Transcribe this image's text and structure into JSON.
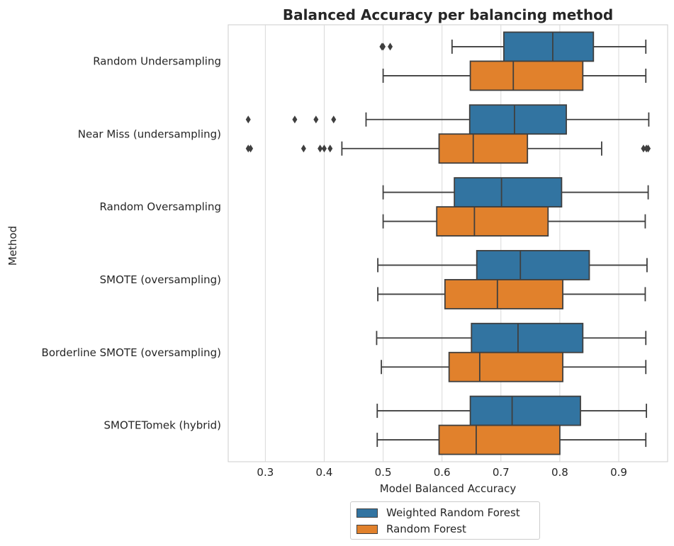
{
  "chart_data": {
    "type": "boxplot",
    "orientation": "horizontal",
    "title": "Balanced Accuracy per balancing method",
    "xlabel": "Model Balanced Accuracy",
    "ylabel": "Method",
    "xlim": [
      0.237,
      0.983
    ],
    "xticks": [
      "0.3",
      "0.4",
      "0.5",
      "0.6",
      "0.7",
      "0.8",
      "0.9"
    ],
    "grid": "vertical",
    "legend_position": "bottom-center",
    "categories": [
      "Random Undersampling",
      "Near Miss (undersampling)",
      "Random Oversampling",
      "SMOTE (oversampling)",
      "Borderline SMOTE (oversampling)",
      "SMOTETomek (hybrid)"
    ],
    "series": [
      {
        "name": "Weighted Random Forest",
        "color": "#3274a1",
        "boxes": [
          {
            "whisker_low": 0.617,
            "q1": 0.705,
            "median": 0.788,
            "q3": 0.857,
            "whisker_high": 0.946,
            "outliers": [
              0.498,
              0.5,
              0.512
            ]
          },
          {
            "whisker_low": 0.471,
            "q1": 0.647,
            "median": 0.723,
            "q3": 0.811,
            "whisker_high": 0.951,
            "outliers": [
              0.271,
              0.35,
              0.386,
              0.416
            ]
          },
          {
            "whisker_low": 0.5,
            "q1": 0.621,
            "median": 0.701,
            "q3": 0.803,
            "whisker_high": 0.95,
            "outliers": []
          },
          {
            "whisker_low": 0.491,
            "q1": 0.659,
            "median": 0.733,
            "q3": 0.85,
            "whisker_high": 0.948,
            "outliers": []
          },
          {
            "whisker_low": 0.489,
            "q1": 0.65,
            "median": 0.729,
            "q3": 0.839,
            "whisker_high": 0.946,
            "outliers": []
          },
          {
            "whisker_low": 0.49,
            "q1": 0.648,
            "median": 0.719,
            "q3": 0.835,
            "whisker_high": 0.947,
            "outliers": []
          }
        ]
      },
      {
        "name": "Random Forest",
        "color": "#e1812c",
        "boxes": [
          {
            "whisker_low": 0.5,
            "q1": 0.648,
            "median": 0.721,
            "q3": 0.839,
            "whisker_high": 0.946,
            "outliers": []
          },
          {
            "whisker_low": 0.43,
            "q1": 0.595,
            "median": 0.653,
            "q3": 0.745,
            "whisker_high": 0.871,
            "outliers": [
              0.271,
              0.275,
              0.365,
              0.393,
              0.4,
              0.41,
              0.942,
              0.947,
              0.95
            ]
          },
          {
            "whisker_low": 0.5,
            "q1": 0.591,
            "median": 0.655,
            "q3": 0.78,
            "whisker_high": 0.945,
            "outliers": []
          },
          {
            "whisker_low": 0.491,
            "q1": 0.605,
            "median": 0.694,
            "q3": 0.805,
            "whisker_high": 0.945,
            "outliers": []
          },
          {
            "whisker_low": 0.497,
            "q1": 0.612,
            "median": 0.664,
            "q3": 0.805,
            "whisker_high": 0.946,
            "outliers": []
          },
          {
            "whisker_low": 0.49,
            "q1": 0.595,
            "median": 0.658,
            "q3": 0.8,
            "whisker_high": 0.946,
            "outliers": []
          }
        ]
      }
    ]
  }
}
